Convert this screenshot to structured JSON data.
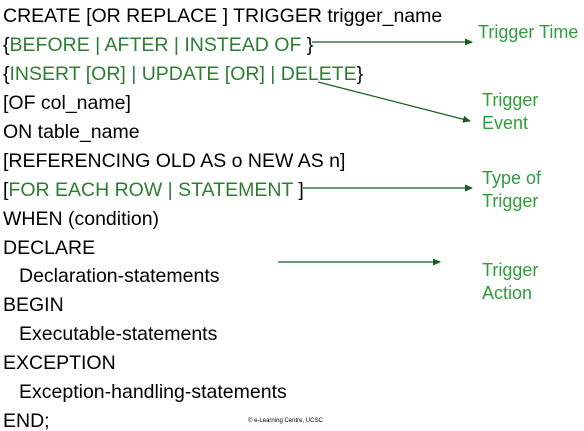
{
  "colors": {
    "syntax_text": "#000000",
    "keyword_green": "#2e7d32",
    "label_green": "#2e9e3a",
    "arrow": "#1b5e20"
  },
  "code": {
    "line1": "CREATE [OR REPLACE ] TRIGGER trigger_name",
    "line2_open": "{",
    "line2_green": "BEFORE | AFTER | INSTEAD OF ",
    "line2_close": "}",
    "line3_open": "{",
    "line3_green": "INSERT [OR] | UPDATE [OR] | DELETE",
    "line3_close": "}",
    "line4": "[OF col_name]",
    "line5": "ON table_name",
    "line6": "[REFERENCING OLD AS o NEW AS n]",
    "line7_open": "[",
    "line7_green": "FOR EACH ROW | STATEMENT ",
    "line7_close": "]",
    "line8": "WHEN (condition)",
    "line9": "DECLARE",
    "line10": "Declaration-statements",
    "line11": "BEGIN",
    "line12": "Executable-statements",
    "line13": "EXCEPTION",
    "line14": "Exception-handling-statements",
    "line15": "END;"
  },
  "labels": {
    "trigger_time": "Trigger Time",
    "trigger_event_1": "Trigger",
    "trigger_event_2": "Event",
    "type_of_trigger_1": "Type of",
    "type_of_trigger_2": "Trigger",
    "trigger_action_1": "Trigger",
    "trigger_action_2": "Action"
  },
  "footer": "© e-Learning Centre, UCSC"
}
